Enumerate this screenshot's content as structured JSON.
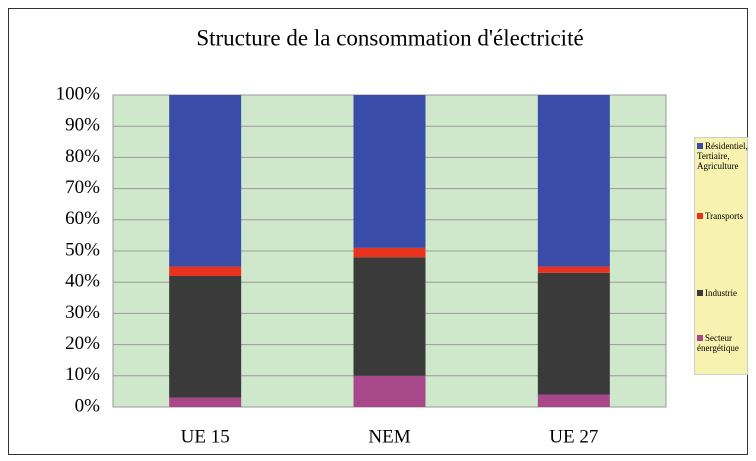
{
  "chart_data": {
    "type": "stacked_bar",
    "title": "Structure de la consommation d'électricité",
    "categories": [
      "UE 15",
      "NEM",
      "UE 27"
    ],
    "series": [
      {
        "name": "Secteur énergétique",
        "color": "#a8488a",
        "values": [
          3,
          10,
          4
        ]
      },
      {
        "name": "Industrie",
        "color": "#3a3a3a",
        "values": [
          39,
          38,
          39
        ]
      },
      {
        "name": "Transports",
        "color": "#e8321e",
        "values": [
          3,
          3,
          2
        ]
      },
      {
        "name": "Résidentiel, Tertiaire, Agriculture",
        "color": "#3a4ca8",
        "values": [
          55,
          49,
          55
        ]
      }
    ],
    "ylim": [
      0,
      100
    ],
    "yticks": [
      {
        "value": 0,
        "label": "0%"
      },
      {
        "value": 10,
        "label": "10%"
      },
      {
        "value": 20,
        "label": "20%"
      },
      {
        "value": 30,
        "label": "30%"
      },
      {
        "value": 40,
        "label": "40%"
      },
      {
        "value": 50,
        "label": "50%"
      },
      {
        "value": 60,
        "label": "60%"
      },
      {
        "value": 70,
        "label": "70%"
      },
      {
        "value": 80,
        "label": "80%"
      },
      {
        "value": 90,
        "label": "90%"
      },
      {
        "value": 100,
        "label": "100%"
      }
    ],
    "grid": true,
    "legend": "right"
  }
}
